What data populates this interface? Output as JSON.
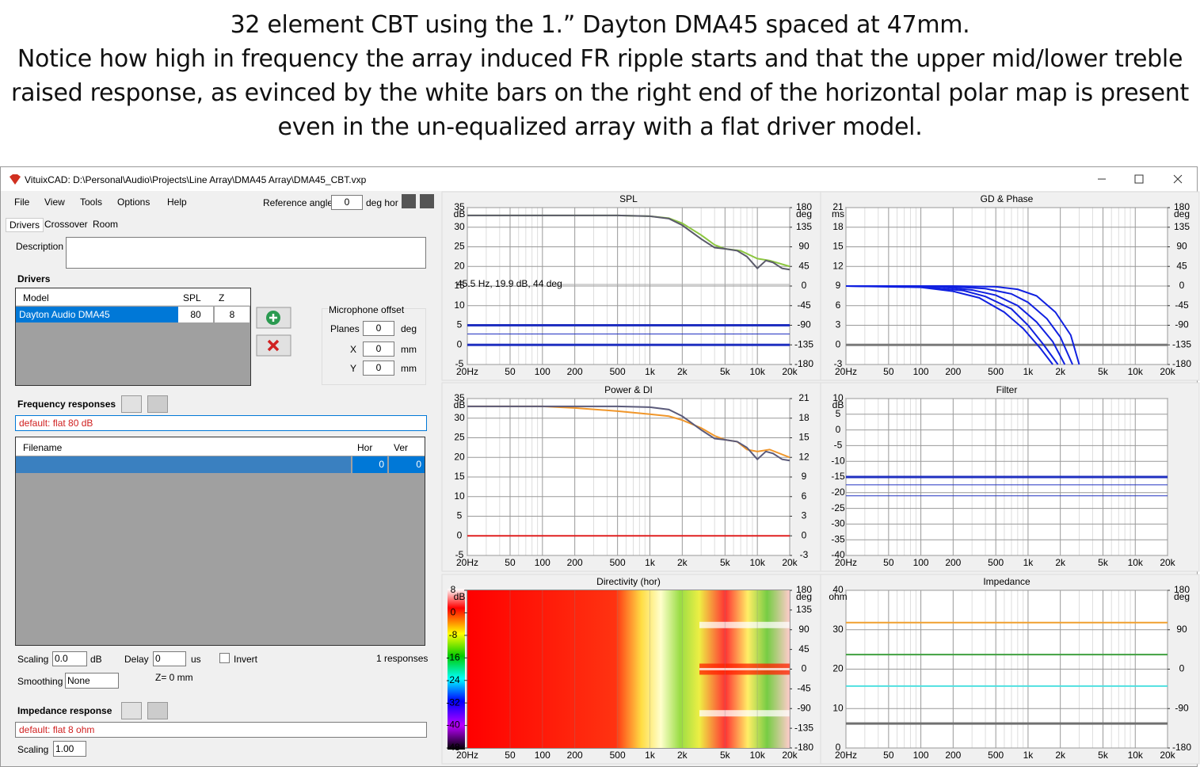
{
  "heading": [
    "32 element CBT using the 1.” Dayton DMA45 spaced at 47mm.",
    "Notice how high in frequency the array induced FR ripple starts and that the upper mid/lower treble",
    "raised response, as evinced by the white bars on the right end of the horizontal polar map is present",
    "even in the un-equalized array with a flat driver model."
  ],
  "window": {
    "title": "VituixCAD: D:\\Personal\\Audio\\Projects\\Line Array\\DMA45 Array\\DMA45_CBT.vxp"
  },
  "menu": [
    "File",
    "View",
    "Tools",
    "Options",
    "Help"
  ],
  "reference": {
    "label": "Reference angle",
    "value": "0",
    "unit": "deg hor"
  },
  "tabs": [
    "Drivers",
    "Crossover",
    "Room"
  ],
  "description_label": "Description",
  "drivers": {
    "title": "Drivers",
    "columns": [
      "Model",
      "SPL",
      "Z"
    ],
    "rows": [
      [
        "Dayton Audio DMA45",
        "80",
        "8"
      ]
    ]
  },
  "mic_offset": {
    "title": "Microphone offset",
    "fields": [
      {
        "label": "Planes",
        "value": "0",
        "unit": "deg"
      },
      {
        "label": "X",
        "value": "0",
        "unit": "mm"
      },
      {
        "label": "Y",
        "value": "0",
        "unit": "mm"
      }
    ]
  },
  "freq_responses": {
    "title": "Frequency responses",
    "source": "default: flat 80 dB",
    "columns": [
      "Filename",
      "Hor",
      "Ver"
    ],
    "rows": [
      {
        "hor": "0",
        "ver": "0"
      }
    ]
  },
  "controls": {
    "scaling_label": "Scaling",
    "scaling": "0.0",
    "scaling_unit": "dB",
    "delay_label": "Delay",
    "delay": "0",
    "delay_unit": "us",
    "invert": "Invert",
    "count": "1 responses",
    "smoothing_label": "Smoothing",
    "smoothing": "None",
    "z": "Z= 0 mm"
  },
  "impedance": {
    "title": "Impedance response",
    "source": "default: flat 8 ohm",
    "scaling_label": "Scaling",
    "scaling": "1.00"
  },
  "freq_axis": {
    "xlim": [
      20,
      20000
    ],
    "xticks": [
      {
        "value": 20,
        "label": "20Hz"
      },
      50,
      100,
      200,
      500,
      {
        "value": 1000,
        "label": "1k"
      },
      {
        "value": 2000,
        "label": "2k"
      },
      {
        "value": 5000,
        "label": "5k"
      },
      {
        "value": 10000,
        "label": "10k"
      },
      {
        "value": 20000,
        "label": "20k"
      }
    ],
    "minor": [
      30,
      40,
      60,
      70,
      80,
      90,
      300,
      400,
      600,
      700,
      800,
      900,
      3000,
      4000,
      6000,
      7000,
      8000,
      9000
    ]
  },
  "panels": [
    {
      "type": "line",
      "title": "SPL",
      "ylabel": "dB",
      "y2label": "deg",
      "ylim": [
        -5,
        35
      ],
      "yticks": [
        35,
        30,
        25,
        20,
        15,
        10,
        5,
        0,
        -5
      ],
      "y2lim": [
        -180,
        180
      ],
      "y2ticks": [
        180,
        135,
        90,
        45,
        0,
        -45,
        -90,
        -135,
        -180
      ],
      "annotation": "45.5 Hz, 19.9 dB, 44 deg",
      "series": [
        {
          "color": "#8cc63f",
          "x": [
            20,
            200,
            500,
            1000,
            1500,
            2000,
            3000,
            4000,
            5000,
            7000,
            10000,
            13000,
            20000
          ],
          "values": [
            33,
            33,
            33,
            32.8,
            32.3,
            31,
            28,
            25.5,
            24.5,
            24,
            22,
            21.5,
            20
          ]
        },
        {
          "color": "#5a5a6a",
          "x": [
            20,
            200,
            500,
            1000,
            1500,
            2000,
            3000,
            4000,
            5000,
            6500,
            8000,
            10000,
            12000,
            14000,
            17000,
            20000
          ],
          "values": [
            33,
            33,
            33,
            32.8,
            32.2,
            30.5,
            27,
            24.8,
            24.5,
            24,
            22.5,
            19.5,
            21.5,
            21,
            19.5,
            19.2
          ]
        },
        {
          "color": "#2030c0",
          "axis": "y2",
          "width": 3,
          "x": [
            20,
            20000
          ],
          "values": [
            -90,
            -90
          ]
        },
        {
          "color": "#2030c0",
          "axis": "y2",
          "width": 1,
          "x": [
            20,
            20000
          ],
          "values": [
            -110,
            -110
          ]
        },
        {
          "color": "#2030c0",
          "axis": "y2",
          "width": 3,
          "x": [
            20,
            20000
          ],
          "values": [
            -135,
            -135
          ]
        }
      ]
    },
    {
      "type": "line",
      "title": "GD & Phase",
      "ylabel": "ms",
      "y2label": "deg",
      "ylim": [
        -3,
        21
      ],
      "yticks": [
        21,
        18,
        15,
        12,
        9,
        6,
        3,
        0,
        -3
      ],
      "y2lim": [
        -180,
        180
      ],
      "y2ticks": [
        180,
        135,
        90,
        45,
        0,
        -45,
        -90,
        -135,
        -180
      ],
      "series": [
        {
          "color": "#7a7a7a",
          "width": 3,
          "x": [
            20,
            20000
          ],
          "values": [
            0,
            0
          ]
        },
        {
          "color": "#1020e0",
          "x": [
            20,
            200,
            500,
            800,
            1200,
            1800,
            2500,
            3000
          ],
          "values": [
            9,
            9,
            8.9,
            8.5,
            7.5,
            5,
            1.5,
            -3
          ]
        },
        {
          "color": "#1020e0",
          "x": [
            20,
            200,
            400,
            700,
            1000,
            1500,
            2000,
            2600
          ],
          "values": [
            9,
            8.9,
            8.6,
            7.8,
            6.5,
            4,
            1.2,
            -3
          ]
        },
        {
          "color": "#1020e0",
          "x": [
            20,
            150,
            300,
            500,
            800,
            1200,
            1700,
            2200
          ],
          "values": [
            9,
            8.9,
            8.4,
            7.6,
            6,
            3.5,
            0.5,
            -3
          ]
        },
        {
          "color": "#1020e0",
          "x": [
            20,
            100,
            250,
            400,
            700,
            1000,
            1400,
            1900
          ],
          "values": [
            9,
            8.9,
            8.3,
            7.4,
            5.5,
            3,
            0,
            -3
          ]
        },
        {
          "color": "#1020e0",
          "x": [
            20,
            100,
            200,
            350,
            600,
            900,
            1300,
            1700
          ],
          "values": [
            9,
            8.8,
            8.2,
            7.2,
            5,
            2.5,
            -0.5,
            -3
          ]
        }
      ]
    },
    {
      "type": "line",
      "title": "Power & DI",
      "ylabel": "dB",
      "ylim": [
        -5,
        35
      ],
      "yticks": [
        35,
        30,
        25,
        20,
        15,
        10,
        5,
        0,
        -5
      ],
      "y2lim": [
        -3,
        21
      ],
      "y2ticks": [
        21,
        18,
        15,
        12,
        9,
        6,
        3,
        0,
        -3
      ],
      "series": [
        {
          "color": "#f0962a",
          "x": [
            20,
            100,
            200,
            500,
            1000,
            1500,
            2000,
            3000,
            4000,
            5000,
            6500,
            8000,
            10000,
            13000,
            20000
          ],
          "values": [
            33,
            33,
            32.6,
            31.8,
            31,
            30.5,
            29.5,
            27.5,
            25.5,
            24.5,
            24,
            22,
            21.5,
            22,
            20
          ]
        },
        {
          "color": "#5a5a7a",
          "x": [
            20,
            200,
            500,
            1000,
            1500,
            2000,
            3000,
            4000,
            5000,
            6500,
            8000,
            10000,
            12000,
            14000,
            17000,
            20000
          ],
          "values": [
            33,
            33,
            33,
            32.8,
            32.2,
            30.5,
            27,
            24.8,
            24.5,
            24,
            22.5,
            19.5,
            21.5,
            21,
            19.5,
            19.2
          ]
        },
        {
          "color": "#e02020",
          "axis": "y2",
          "width": 2,
          "x": [
            20,
            20000
          ],
          "values": [
            0,
            0
          ]
        }
      ]
    },
    {
      "type": "line",
      "title": "Filter",
      "ylabel": "dB",
      "ylim": [
        -40,
        10
      ],
      "yticks": [
        10,
        5,
        0,
        -5,
        -10,
        -15,
        -20,
        -25,
        -30,
        -35,
        -40
      ],
      "series": [
        {
          "color": "#2030c0",
          "width": 3,
          "x": [
            20,
            20000
          ],
          "values": [
            -15,
            -15
          ]
        },
        {
          "color": "#2030c0",
          "width": 1,
          "x": [
            20,
            20000
          ],
          "values": [
            -17.5,
            -17.5
          ]
        },
        {
          "color": "#2030c0",
          "width": 1,
          "x": [
            20,
            20000
          ],
          "values": [
            -21,
            -21
          ]
        }
      ]
    },
    {
      "type": "heatmap",
      "title": "Directivity (hor)",
      "ylabel": "dB",
      "ylim": [
        -48,
        8
      ],
      "yticks": [
        8,
        0,
        -8,
        -16,
        -24,
        -32,
        -40,
        -48
      ],
      "y2label": "deg",
      "y2lim": [
        -180,
        180
      ],
      "y2ticks": [
        180,
        135,
        90,
        45,
        0,
        -45,
        -90,
        -135,
        -180
      ]
    },
    {
      "type": "line",
      "title": "Impedance",
      "ylabel": "ohm",
      "ylim": [
        0,
        40
      ],
      "yticks": [
        40,
        30,
        20,
        10,
        0
      ],
      "y2label": "deg",
      "y2lim": [
        -180,
        180
      ],
      "y2ticks": [
        180,
        90,
        0,
        -90,
        -180
      ],
      "series": [
        {
          "color": "#f0a030",
          "x": [
            20,
            20000
          ],
          "values": [
            31.8,
            31.8
          ]
        },
        {
          "color": "#40a040",
          "x": [
            20,
            20000
          ],
          "values": [
            23.7,
            23.7
          ]
        },
        {
          "color": "#50e0e0",
          "x": [
            20,
            20000
          ],
          "values": [
            15.7,
            15.7
          ]
        },
        {
          "color": "#707070",
          "width": 3,
          "x": [
            20,
            20000
          ],
          "values": [
            6.2,
            6.2
          ]
        }
      ]
    }
  ]
}
